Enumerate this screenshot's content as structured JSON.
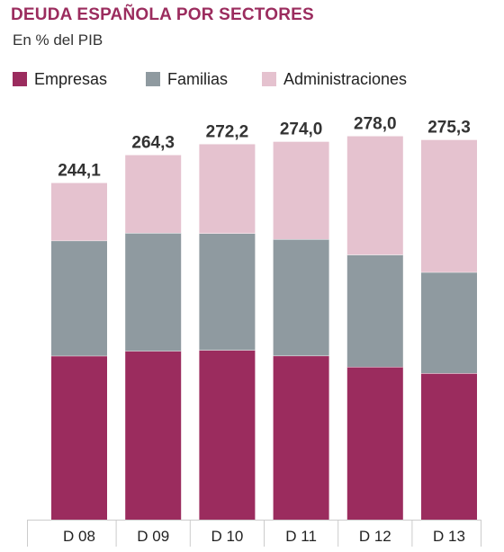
{
  "title": "DEUDA ESPAÑOLA POR SECTORES",
  "subtitle": "En % del PIB",
  "colors": {
    "title": "#9b2c5e",
    "empresas": "#9b2c5e",
    "familias": "#8f9aa0",
    "administraciones": "#e5c2cf"
  },
  "legend": [
    {
      "label": "Empresas",
      "color_key": "empresas"
    },
    {
      "label": "Familias",
      "color_key": "familias"
    },
    {
      "label": "Administraciones",
      "color_key": "administraciones"
    }
  ],
  "chart_data": {
    "type": "bar",
    "stacked": true,
    "categories": [
      "D 08",
      "D 09",
      "D 10",
      "D 11",
      "D 12",
      "D 13"
    ],
    "totals": [
      "244,1",
      "264,3",
      "272,2",
      "274,0",
      "278,0",
      "275,3"
    ],
    "total_values": [
      244.1,
      264.3,
      272.2,
      274.0,
      278.0,
      275.3
    ],
    "series": [
      {
        "name": "Empresas",
        "values": [
          118.8,
          122.3,
          123.0,
          118.9,
          110.8,
          106.2
        ]
      },
      {
        "name": "Familias",
        "values": [
          83.5,
          85.6,
          84.6,
          84.5,
          81.3,
          73.2
        ]
      },
      {
        "name": "Administraciones",
        "values": [
          41.8,
          56.4,
          64.6,
          70.6,
          85.9,
          95.9
        ]
      }
    ],
    "ylim": [
      0,
      280
    ],
    "grid": false,
    "legend_position": "top"
  }
}
